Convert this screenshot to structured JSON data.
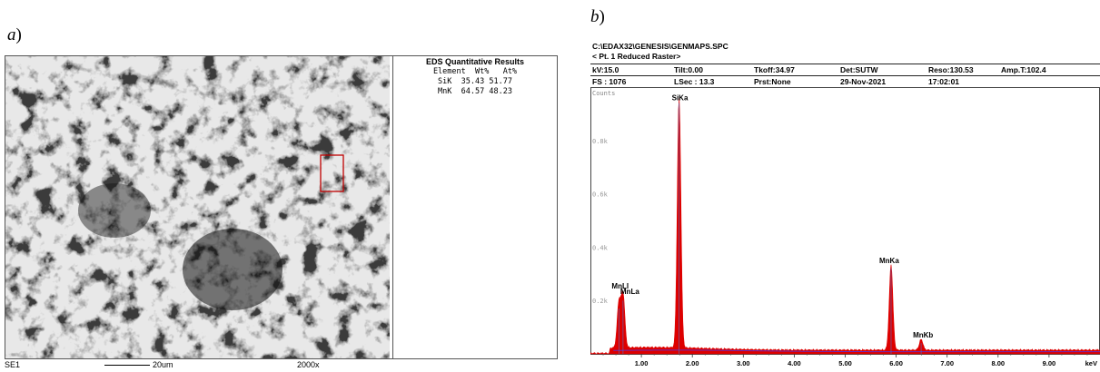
{
  "panel_a": {
    "label": "a",
    "footer": {
      "detector": "SE1",
      "scale": "20um",
      "magnification": "2000x"
    },
    "eds_table": {
      "title": "EDS Quantitative Results",
      "header": "Element  Wt%   At%",
      "rows": [
        {
          "element": "SiK",
          "wt": "35.43",
          "at": "51.77"
        },
        {
          "element": "MnK",
          "wt": "64.57",
          "at": "48.23"
        }
      ]
    }
  },
  "panel_b": {
    "label": "b",
    "header": {
      "path": "C:\\EDAX32\\GENESIS\\GENMAPS.SPC",
      "subtitle": "< Pt.  1 Reduced Raster>",
      "row1": [
        "kV:15.0",
        "Tilt:0.00",
        "Tkoff:34.97",
        "Det:SUTW",
        "Reso:130.53",
        "Amp.T:102.4"
      ],
      "row2": [
        "FS : 1076",
        "LSec : 13.3",
        "Prst:None",
        "29-Nov-2021",
        "17:02:01"
      ]
    }
  },
  "chart_data": {
    "type": "area",
    "title": "",
    "xlabel": "keV",
    "ylabel": "Counts",
    "xlim": [
      0.0,
      10.0
    ],
    "ylim": [
      0,
      1.0
    ],
    "x_ticks": [
      "1.00",
      "2.00",
      "3.00",
      "4.00",
      "5.00",
      "6.00",
      "7.00",
      "8.00",
      "9.00"
    ],
    "y_ticks": [
      "0.2k",
      "0.4k",
      "0.6k",
      "0.8k"
    ],
    "grid": false,
    "fill_color": "#dd0000",
    "baseline_color": "#6a2bb8",
    "peaks": [
      {
        "name": "MnLl",
        "energy": 0.56,
        "counts": 0.17
      },
      {
        "name": "MnLa",
        "energy": 0.64,
        "counts": 0.2
      },
      {
        "name": "SiKa",
        "energy": 1.74,
        "counts": 0.94
      },
      {
        "name": "MnKa",
        "energy": 5.9,
        "counts": 0.32
      },
      {
        "name": "MnKb",
        "energy": 6.49,
        "counts": 0.04
      }
    ],
    "peak_labels": [
      {
        "text": "MnLl"
      },
      {
        "text": "MnLa"
      },
      {
        "text": "SiKa"
      },
      {
        "text": "MnKa"
      },
      {
        "text": "MnKb"
      }
    ]
  }
}
